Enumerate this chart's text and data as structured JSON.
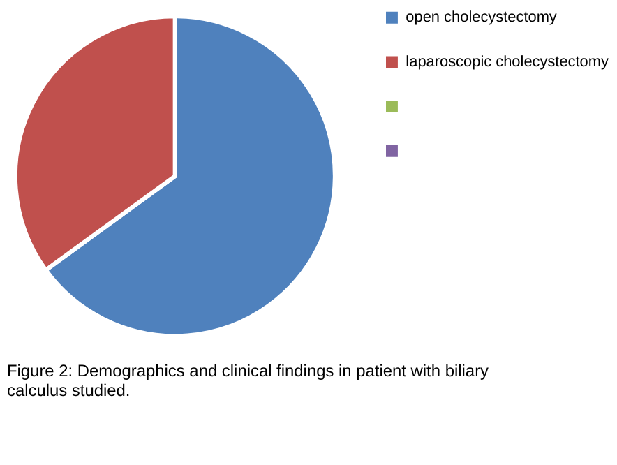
{
  "chart_data": {
    "type": "pie",
    "categories": [
      "open cholecystectomy",
      "laparoscopic cholecystectomy",
      null,
      null
    ],
    "values": [
      65,
      35,
      0,
      0
    ],
    "colors": [
      "#4f81bd",
      "#c0504d",
      "#9bbb59",
      "#8064a2"
    ],
    "legend": "right",
    "annotations": [
      "Figure 2: Demographics and clinical findings in patient with biliary calculus studied."
    ]
  }
}
